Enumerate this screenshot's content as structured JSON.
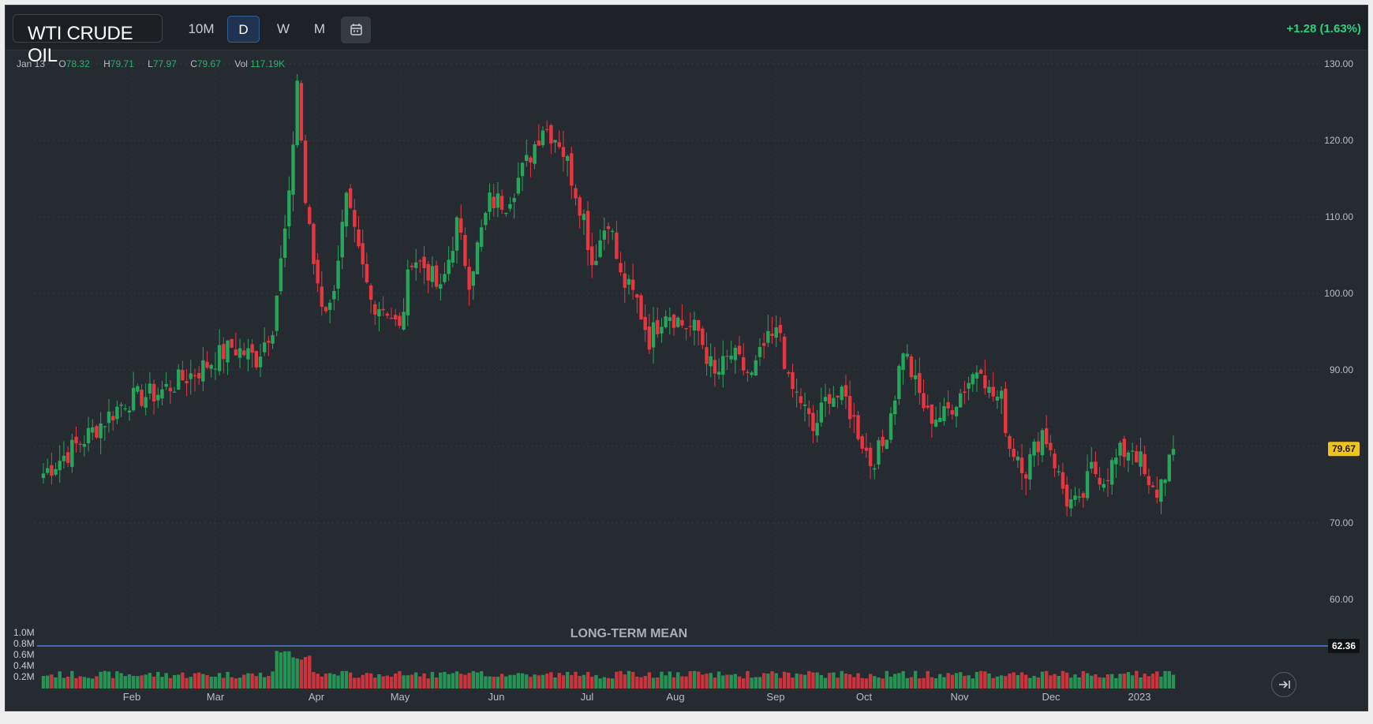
{
  "toolbar": {
    "symbol": "WTI CRUDE OIL",
    "timeframes": [
      "10M",
      "D",
      "W",
      "M"
    ],
    "active_timeframe": "D",
    "calendar_icon": "calendar-icon",
    "change": "+1.28 (1.63%)"
  },
  "ohlc": {
    "date": "Jan 13",
    "open_label": "O",
    "open": "78.32",
    "high_label": "H",
    "high": "79.71",
    "low_label": "L",
    "low": "77.97",
    "close_label": "C",
    "close": "79.67",
    "vol_label": "Vol",
    "vol": "117.19K"
  },
  "colors": {
    "up": "#26a65b",
    "down": "#e8363f",
    "background": "#262a31",
    "mean_line": "#4a86d8",
    "last_price_bg": "#f0c419"
  },
  "chart_data": {
    "type": "candlestick",
    "y_axis": {
      "ticks": [
        "130.00",
        "120.00",
        "110.00",
        "100.00",
        "90.00",
        "80.00",
        "70.00",
        "60.00"
      ],
      "range": [
        58,
        131
      ]
    },
    "x_axis": {
      "labels": [
        "Feb",
        "Mar",
        "Apr",
        "May",
        "Jun",
        "Jul",
        "Aug",
        "Sep",
        "Oct",
        "Nov",
        "Dec",
        "2023"
      ]
    },
    "last_price": "79.67",
    "long_term_mean": {
      "label": "LONG-TERM MEAN",
      "value": "62.36",
      "value_num": 62.36
    },
    "volume_axis": {
      "ticks": [
        "1.0M",
        "0.8M",
        "0.6M",
        "0.4M",
        "0.2M"
      ]
    },
    "close_anchors": [
      [
        0,
        76.5
      ],
      [
        10,
        81
      ],
      [
        20,
        86
      ],
      [
        28,
        87
      ],
      [
        38,
        90
      ],
      [
        46,
        93
      ],
      [
        52,
        91.5
      ],
      [
        56,
        96
      ],
      [
        60,
        112
      ],
      [
        62,
        128
      ],
      [
        64,
        112
      ],
      [
        66,
        104
      ],
      [
        68,
        99
      ],
      [
        70,
        98
      ],
      [
        74,
        112
      ],
      [
        77,
        105
      ],
      [
        80,
        99
      ],
      [
        84,
        98
      ],
      [
        87,
        95
      ],
      [
        90,
        105
      ],
      [
        94,
        103
      ],
      [
        97,
        100
      ],
      [
        101,
        109
      ],
      [
        104,
        102
      ],
      [
        109,
        112
      ],
      [
        113,
        112
      ],
      [
        118,
        117
      ],
      [
        122,
        122
      ],
      [
        126,
        120
      ],
      [
        128,
        117
      ],
      [
        132,
        110
      ],
      [
        134,
        104
      ],
      [
        138,
        110
      ],
      [
        141,
        102
      ],
      [
        145,
        99
      ],
      [
        148,
        94
      ],
      [
        152,
        98
      ],
      [
        156,
        96
      ],
      [
        160,
        95
      ],
      [
        164,
        89
      ],
      [
        168,
        92
      ],
      [
        173,
        89
      ],
      [
        176,
        93
      ],
      [
        180,
        95
      ],
      [
        182,
        88
      ],
      [
        185,
        86
      ],
      [
        188,
        82
      ],
      [
        192,
        87
      ],
      [
        196,
        86
      ],
      [
        199,
        82
      ],
      [
        202,
        78
      ],
      [
        205,
        80
      ],
      [
        208,
        87
      ],
      [
        210,
        93
      ],
      [
        213,
        88
      ],
      [
        216,
        84
      ],
      [
        220,
        84
      ],
      [
        224,
        87
      ],
      [
        229,
        91
      ],
      [
        231,
        87
      ],
      [
        234,
        86
      ],
      [
        236,
        80
      ],
      [
        238,
        79
      ],
      [
        240,
        77
      ],
      [
        244,
        82
      ],
      [
        246,
        80
      ],
      [
        248,
        76
      ],
      [
        250,
        73
      ],
      [
        253,
        72
      ],
      [
        256,
        77
      ],
      [
        259,
        76
      ],
      [
        263,
        79
      ],
      [
        266,
        80
      ],
      [
        268,
        78
      ],
      [
        270,
        74
      ],
      [
        272,
        74
      ],
      [
        276,
        79.67
      ]
    ]
  }
}
